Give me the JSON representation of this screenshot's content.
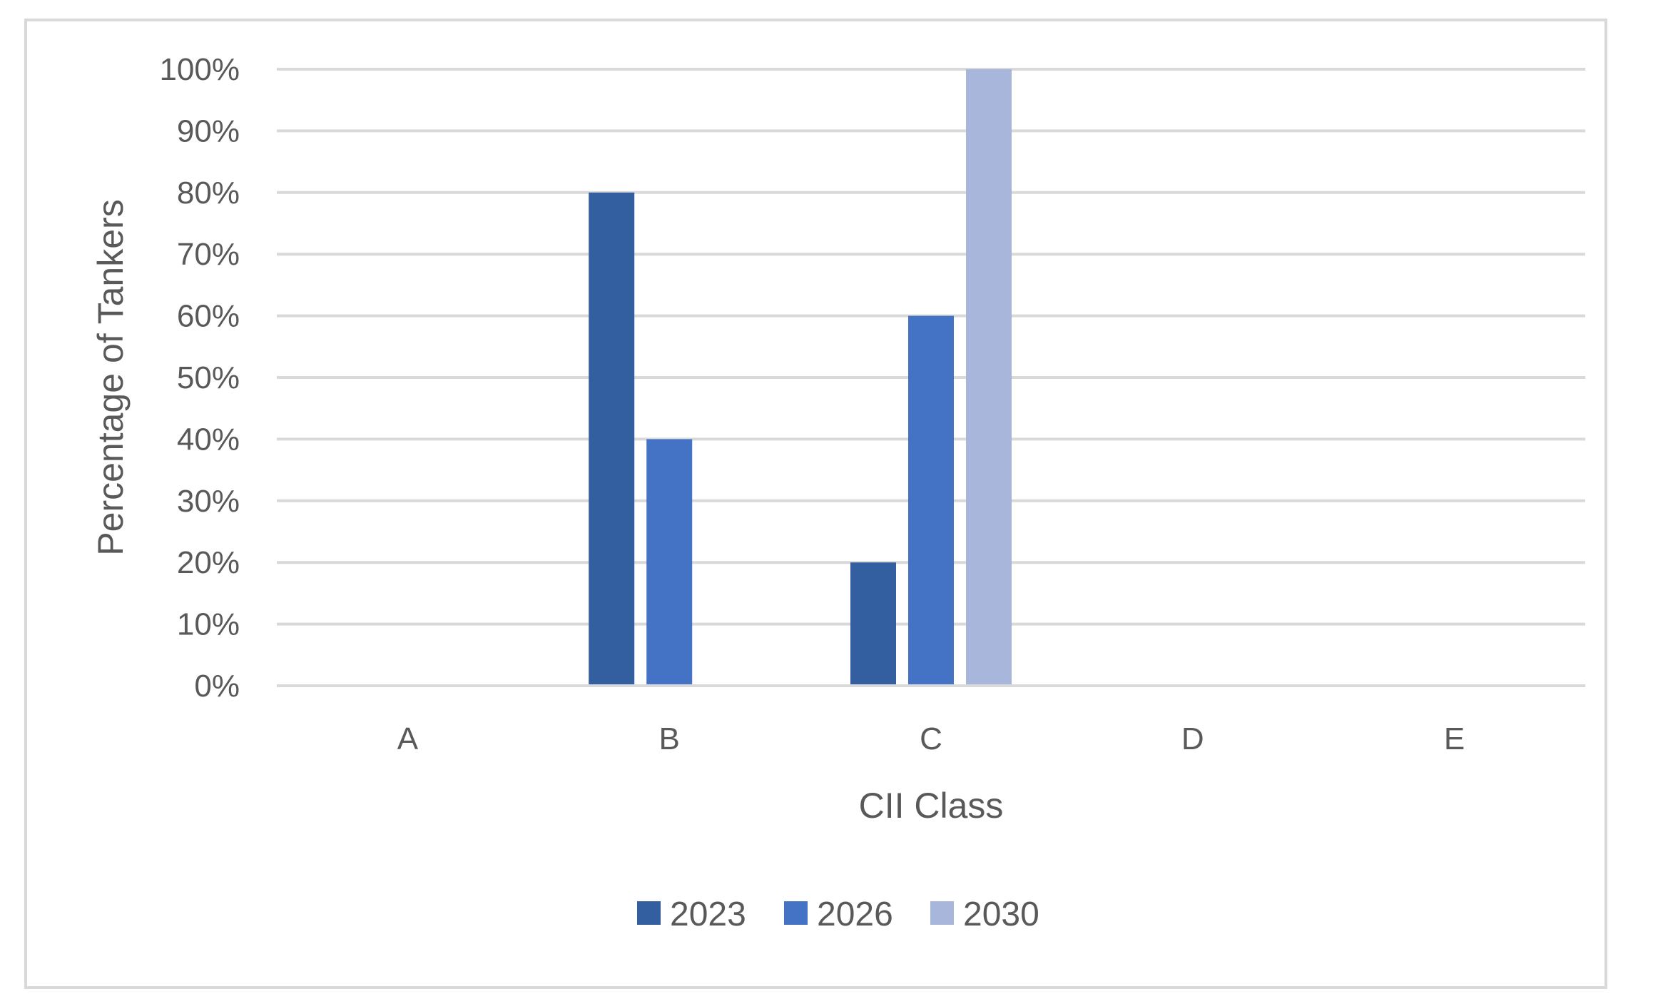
{
  "chart_data": {
    "type": "bar",
    "title": "",
    "xlabel": "CII Class",
    "ylabel": "Percentage of Tankers",
    "categories": [
      "A",
      "B",
      "C",
      "D",
      "E"
    ],
    "series": [
      {
        "name": "2023",
        "color": "#335ea0",
        "values": [
          0,
          80,
          20,
          0,
          0
        ]
      },
      {
        "name": "2026",
        "color": "#4472c4",
        "values": [
          0,
          40,
          60,
          0,
          0
        ]
      },
      {
        "name": "2030",
        "color": "#a7b6da",
        "values": [
          0,
          0,
          100,
          0,
          0
        ]
      }
    ],
    "ylim": [
      0,
      100
    ],
    "yticks": [
      "0%",
      "10%",
      "20%",
      "30%",
      "40%",
      "50%",
      "60%",
      "70%",
      "80%",
      "90%",
      "100%"
    ],
    "grid": true,
    "legend_position": "bottom"
  }
}
